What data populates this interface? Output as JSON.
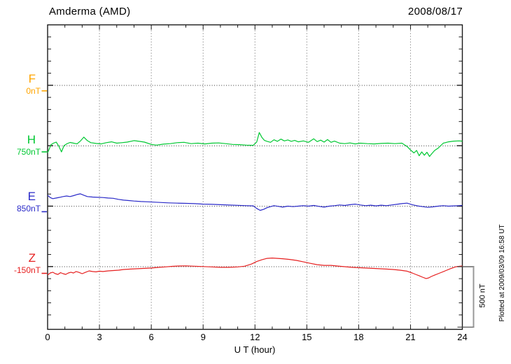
{
  "header": {
    "title": "Amderma (AMD)",
    "date": "2008/08/17"
  },
  "axis": {
    "x_label": "U T (hour)",
    "x_ticks": [
      0,
      3,
      6,
      9,
      12,
      15,
      18,
      21,
      24
    ],
    "x_range": [
      0,
      24
    ],
    "minor_x_step_hours": 1,
    "minor_y_step_nT": 100,
    "baseline_spacing_nT": 500
  },
  "scale_bar": {
    "label": "500 nT",
    "span_nT": 500
  },
  "plotted_note": "Plotted at 2009/03/09 16:58 UT",
  "colors": {
    "F": "#FFA500",
    "H": "#00C832",
    "E": "#2A2AC8",
    "Z": "#E62020",
    "frame": "#1a1a1a",
    "grid": "#5a5a5a",
    "baseline": "#333333",
    "scalebar": "#999999",
    "scalebar_cap": "#444444"
  },
  "components": [
    {
      "id": "F",
      "label": "F",
      "baseline_label": "0nT"
    },
    {
      "id": "H",
      "label": "H",
      "baseline_label": "750nT"
    },
    {
      "id": "E",
      "label": "E",
      "baseline_label": "850nT"
    },
    {
      "id": "Z",
      "label": "Z",
      "baseline_label": "-150nT"
    }
  ],
  "chart_data": {
    "type": "line",
    "title": "Amderma (AMD) magnetogram, 2008/08/17",
    "xlabel": "U T (hour)",
    "x_range": [
      0,
      24
    ],
    "x_tick_interval_hours": 3,
    "grid": "dotted vertical every 3 h, dotted horizontal baseline per component",
    "legend_position": "left margin (component letters with baseline values)",
    "series": [
      {
        "name": "F",
        "baseline_nT": 0,
        "baseline_label": "0nT",
        "color": "#FFA500",
        "edge_marker_nT": -45,
        "note": "no trace plotted (data missing)",
        "points": []
      },
      {
        "name": "H",
        "baseline_nT": 750,
        "baseline_label": "750nT",
        "color": "#00C832",
        "edge_marker_nT": 700,
        "points": [
          [
            0.0,
            692
          ],
          [
            0.1,
            726
          ],
          [
            0.2,
            760
          ],
          [
            0.35,
            773
          ],
          [
            0.5,
            781
          ],
          [
            0.65,
            747
          ],
          [
            0.8,
            700
          ],
          [
            0.95,
            752
          ],
          [
            1.1,
            766
          ],
          [
            1.3,
            778
          ],
          [
            1.5,
            772
          ],
          [
            1.7,
            766
          ],
          [
            1.9,
            790
          ],
          [
            2.1,
            822
          ],
          [
            2.3,
            793
          ],
          [
            2.5,
            776
          ],
          [
            2.8,
            770
          ],
          [
            3.1,
            766
          ],
          [
            3.4,
            776
          ],
          [
            3.7,
            783
          ],
          [
            4.0,
            772
          ],
          [
            4.3,
            776
          ],
          [
            4.6,
            781
          ],
          [
            5.0,
            793
          ],
          [
            5.3,
            787
          ],
          [
            5.6,
            781
          ],
          [
            6.0,
            762
          ],
          [
            6.3,
            756
          ],
          [
            6.7,
            764
          ],
          [
            7.1,
            768
          ],
          [
            7.5,
            776
          ],
          [
            7.9,
            779
          ],
          [
            8.3,
            768
          ],
          [
            8.7,
            772
          ],
          [
            9.1,
            766
          ],
          [
            9.5,
            772
          ],
          [
            9.9,
            774
          ],
          [
            10.3,
            768
          ],
          [
            10.7,
            762
          ],
          [
            11.1,
            760
          ],
          [
            11.5,
            756
          ],
          [
            11.9,
            754
          ],
          [
            12.1,
            781
          ],
          [
            12.25,
            860
          ],
          [
            12.4,
            820
          ],
          [
            12.55,
            795
          ],
          [
            12.7,
            787
          ],
          [
            12.9,
            779
          ],
          [
            13.1,
            800
          ],
          [
            13.3,
            787
          ],
          [
            13.5,
            806
          ],
          [
            13.7,
            791
          ],
          [
            13.9,
            799
          ],
          [
            14.1,
            787
          ],
          [
            14.3,
            795
          ],
          [
            14.5,
            783
          ],
          [
            14.8,
            791
          ],
          [
            15.1,
            779
          ],
          [
            15.4,
            808
          ],
          [
            15.6,
            785
          ],
          [
            15.8,
            797
          ],
          [
            16.0,
            781
          ],
          [
            16.2,
            802
          ],
          [
            16.4,
            779
          ],
          [
            16.6,
            789
          ],
          [
            16.9,
            772
          ],
          [
            17.2,
            768
          ],
          [
            17.5,
            774
          ],
          [
            17.8,
            766
          ],
          [
            18.1,
            772
          ],
          [
            18.5,
            768
          ],
          [
            18.9,
            766
          ],
          [
            19.3,
            770
          ],
          [
            19.7,
            772
          ],
          [
            20.1,
            768
          ],
          [
            20.5,
            772
          ],
          [
            20.8,
            745
          ],
          [
            21.0,
            716
          ],
          [
            21.2,
            691
          ],
          [
            21.35,
            712
          ],
          [
            21.5,
            668
          ],
          [
            21.65,
            700
          ],
          [
            21.8,
            672
          ],
          [
            21.95,
            697
          ],
          [
            22.1,
            662
          ],
          [
            22.25,
            688
          ],
          [
            22.4,
            712
          ],
          [
            22.6,
            731
          ],
          [
            22.9,
            772
          ],
          [
            23.2,
            783
          ],
          [
            23.5,
            789
          ],
          [
            23.8,
            791
          ],
          [
            24.0,
            789
          ]
        ]
      },
      {
        "name": "E",
        "baseline_nT": 850,
        "baseline_label": "850nT",
        "color": "#2A2AC8",
        "edge_marker_nT": 805,
        "points": [
          [
            0.0,
            941
          ],
          [
            0.15,
            922
          ],
          [
            0.3,
            913
          ],
          [
            0.5,
            918
          ],
          [
            0.7,
            924
          ],
          [
            0.9,
            930
          ],
          [
            1.1,
            935
          ],
          [
            1.3,
            930
          ],
          [
            1.5,
            938
          ],
          [
            1.7,
            947
          ],
          [
            1.9,
            953
          ],
          [
            2.1,
            941
          ],
          [
            2.3,
            930
          ],
          [
            2.6,
            926
          ],
          [
            2.9,
            924
          ],
          [
            3.2,
            922
          ],
          [
            3.5,
            918
          ],
          [
            3.8,
            916
          ],
          [
            4.1,
            907
          ],
          [
            4.4,
            901
          ],
          [
            4.7,
            897
          ],
          [
            5.0,
            893
          ],
          [
            5.4,
            889
          ],
          [
            5.8,
            887
          ],
          [
            6.2,
            884
          ],
          [
            6.6,
            881
          ],
          [
            7.0,
            878
          ],
          [
            7.5,
            876
          ],
          [
            8.0,
            874
          ],
          [
            8.5,
            872
          ],
          [
            9.0,
            868
          ],
          [
            9.5,
            866
          ],
          [
            10.0,
            863
          ],
          [
            10.5,
            860
          ],
          [
            11.0,
            858
          ],
          [
            11.5,
            855
          ],
          [
            11.9,
            853
          ],
          [
            12.1,
            832
          ],
          [
            12.3,
            816
          ],
          [
            12.5,
            824
          ],
          [
            12.7,
            838
          ],
          [
            12.9,
            847
          ],
          [
            13.1,
            855
          ],
          [
            13.35,
            849
          ],
          [
            13.6,
            843
          ],
          [
            13.9,
            851
          ],
          [
            14.2,
            847
          ],
          [
            14.5,
            851
          ],
          [
            14.8,
            855
          ],
          [
            15.1,
            851
          ],
          [
            15.4,
            857
          ],
          [
            15.7,
            849
          ],
          [
            16.0,
            843
          ],
          [
            16.3,
            851
          ],
          [
            16.6,
            855
          ],
          [
            16.9,
            861
          ],
          [
            17.2,
            857
          ],
          [
            17.5,
            863
          ],
          [
            17.8,
            868
          ],
          [
            18.1,
            861
          ],
          [
            18.4,
            855
          ],
          [
            18.7,
            859
          ],
          [
            19.0,
            853
          ],
          [
            19.3,
            859
          ],
          [
            19.6,
            855
          ],
          [
            19.9,
            861
          ],
          [
            20.2,
            866
          ],
          [
            20.5,
            872
          ],
          [
            20.8,
            876
          ],
          [
            21.1,
            863
          ],
          [
            21.4,
            853
          ],
          [
            21.7,
            847
          ],
          [
            22.0,
            841
          ],
          [
            22.3,
            845
          ],
          [
            22.6,
            851
          ],
          [
            22.9,
            855
          ],
          [
            23.2,
            851
          ],
          [
            23.5,
            853
          ],
          [
            23.8,
            855
          ],
          [
            24.0,
            857
          ]
        ]
      },
      {
        "name": "Z",
        "baseline_nT": -150,
        "baseline_label": "-150nT",
        "color": "#E62020",
        "edge_marker_nT": -205,
        "points": [
          [
            0.0,
            -219
          ],
          [
            0.15,
            -202
          ],
          [
            0.3,
            -196
          ],
          [
            0.45,
            -208
          ],
          [
            0.6,
            -214
          ],
          [
            0.75,
            -199
          ],
          [
            0.9,
            -208
          ],
          [
            1.05,
            -214
          ],
          [
            1.2,
            -202
          ],
          [
            1.35,
            -196
          ],
          [
            1.5,
            -202
          ],
          [
            1.65,
            -190
          ],
          [
            1.8,
            -196
          ],
          [
            2.0,
            -208
          ],
          [
            2.2,
            -196
          ],
          [
            2.4,
            -185
          ],
          [
            2.6,
            -190
          ],
          [
            2.8,
            -193
          ],
          [
            3.0,
            -187
          ],
          [
            3.2,
            -190
          ],
          [
            3.5,
            -185
          ],
          [
            3.8,
            -182
          ],
          [
            4.1,
            -179
          ],
          [
            4.4,
            -173
          ],
          [
            4.8,
            -170
          ],
          [
            5.2,
            -167
          ],
          [
            5.6,
            -164
          ],
          [
            6.0,
            -161
          ],
          [
            6.4,
            -156
          ],
          [
            6.8,
            -152
          ],
          [
            7.2,
            -147
          ],
          [
            7.6,
            -144
          ],
          [
            8.0,
            -143
          ],
          [
            8.5,
            -146
          ],
          [
            9.0,
            -149
          ],
          [
            9.5,
            -152
          ],
          [
            10.0,
            -155
          ],
          [
            10.5,
            -155
          ],
          [
            11.0,
            -152
          ],
          [
            11.4,
            -146
          ],
          [
            11.8,
            -128
          ],
          [
            12.1,
            -107
          ],
          [
            12.4,
            -93
          ],
          [
            12.7,
            -81
          ],
          [
            13.0,
            -78
          ],
          [
            13.3,
            -81
          ],
          [
            13.6,
            -84
          ],
          [
            14.0,
            -90
          ],
          [
            14.4,
            -98
          ],
          [
            14.8,
            -110
          ],
          [
            15.2,
            -122
          ],
          [
            15.6,
            -133
          ],
          [
            16.0,
            -139
          ],
          [
            16.4,
            -139
          ],
          [
            16.8,
            -145
          ],
          [
            17.2,
            -150
          ],
          [
            17.6,
            -155
          ],
          [
            18.0,
            -158
          ],
          [
            18.4,
            -161
          ],
          [
            18.8,
            -164
          ],
          [
            19.2,
            -167
          ],
          [
            19.6,
            -170
          ],
          [
            20.0,
            -173
          ],
          [
            20.4,
            -179
          ],
          [
            20.8,
            -187
          ],
          [
            21.1,
            -202
          ],
          [
            21.3,
            -214
          ],
          [
            21.5,
            -225
          ],
          [
            21.7,
            -237
          ],
          [
            21.9,
            -248
          ],
          [
            22.05,
            -243
          ],
          [
            22.2,
            -231
          ],
          [
            22.4,
            -219
          ],
          [
            22.7,
            -202
          ],
          [
            23.0,
            -185
          ],
          [
            23.3,
            -167
          ],
          [
            23.6,
            -152
          ],
          [
            23.8,
            -147
          ],
          [
            24.0,
            -144
          ]
        ]
      }
    ]
  }
}
